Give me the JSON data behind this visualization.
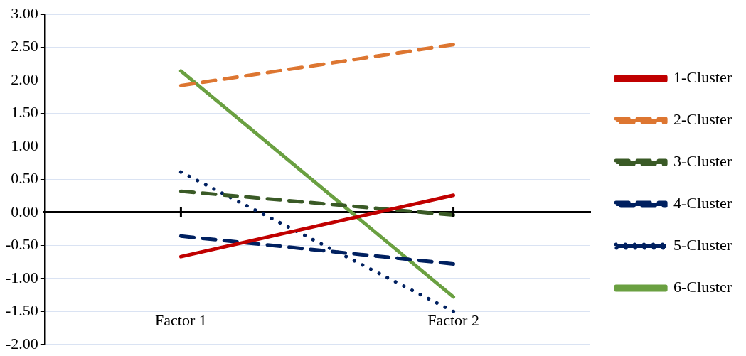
{
  "chart_data": {
    "type": "line",
    "categories": [
      "Factor 1",
      "Factor 2"
    ],
    "series": [
      {
        "name": "1-Cluster",
        "color": "#c00000",
        "values": [
          -0.67,
          0.26
        ],
        "line_style": "solid"
      },
      {
        "name": "2-Cluster",
        "color": "#dd7631",
        "values": [
          1.92,
          2.54
        ],
        "line_style": "dashed"
      },
      {
        "name": "3-Cluster",
        "color": "#3a5a26",
        "values": [
          0.32,
          -0.04
        ],
        "line_style": "dashed"
      },
      {
        "name": "4-Cluster",
        "color": "#002060",
        "values": [
          -0.36,
          -0.78
        ],
        "line_style": "dashed"
      },
      {
        "name": "5-Cluster",
        "color": "#002060",
        "values": [
          0.61,
          -1.5
        ],
        "line_style": "dotted"
      },
      {
        "name": "6-Cluster",
        "color": "#6aa041",
        "values": [
          2.14,
          -1.28
        ],
        "line_style": "solid"
      }
    ],
    "ylim": [
      -2,
      3
    ],
    "yticks": [
      {
        "value": -2,
        "label": "-2.00"
      },
      {
        "value": -1.5,
        "label": "-1.50"
      },
      {
        "value": -1,
        "label": "-1.00"
      },
      {
        "value": -0.5,
        "label": "-0.50"
      },
      {
        "value": 0,
        "label": "0.00"
      },
      {
        "value": 0.5,
        "label": "0.50"
      },
      {
        "value": 1,
        "label": "1.00"
      },
      {
        "value": 1.5,
        "label": "1.50"
      },
      {
        "value": 2,
        "label": "2.00"
      },
      {
        "value": 2.5,
        "label": "2.50"
      },
      {
        "value": 3,
        "label": "3.00"
      }
    ],
    "grid": "y",
    "legend": "right",
    "marker": "none"
  }
}
